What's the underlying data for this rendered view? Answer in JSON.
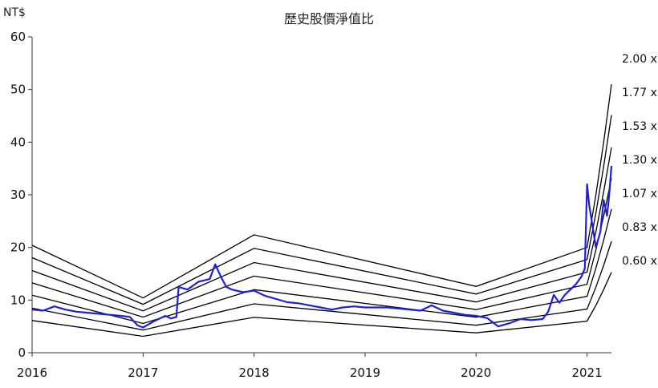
{
  "chart_data": {
    "type": "line",
    "title": "歷史股價淨值比",
    "unit_label": "NT$",
    "xlabel": "",
    "ylabel": "",
    "x_ticks": [
      "2016",
      "2017",
      "2018",
      "2019",
      "2020",
      "2021"
    ],
    "xlim": [
      2016.0,
      2021.22
    ],
    "y_ticks": [
      "0",
      "10",
      "20",
      "30",
      "40",
      "50",
      "60"
    ],
    "ylim": [
      0,
      60
    ],
    "grid": false,
    "book_value_per_share": {
      "x": [
        2016.0,
        2017.0,
        2018.0,
        2020.0,
        2021.0,
        2021.08,
        2021.15,
        2021.22
      ],
      "y": [
        10.2,
        5.2,
        11.2,
        6.3,
        10.0,
        15.0,
        20.0,
        25.5
      ]
    },
    "pb_bands": [
      {
        "name": "2.00 x",
        "multiple": 2.0
      },
      {
        "name": "1.77 x",
        "multiple": 1.77
      },
      {
        "name": "1.53 x",
        "multiple": 1.53
      },
      {
        "name": "1.30 x",
        "multiple": 1.3
      },
      {
        "name": "1.07 x",
        "multiple": 1.07
      },
      {
        "name": "0.83 x",
        "multiple": 0.83
      },
      {
        "name": "0.60 x",
        "multiple": 0.6
      }
    ],
    "price_series": {
      "color": "#1f1fd6",
      "x": [
        2016.0,
        2016.1,
        2016.2,
        2016.3,
        2016.4,
        2016.5,
        2016.6,
        2016.7,
        2016.8,
        2016.88,
        2016.95,
        2017.0,
        2017.1,
        2017.2,
        2017.25,
        2017.3,
        2017.32,
        2017.4,
        2017.5,
        2017.6,
        2017.65,
        2017.7,
        2017.75,
        2017.8,
        2017.9,
        2018.0,
        2018.1,
        2018.2,
        2018.3,
        2018.4,
        2018.5,
        2018.6,
        2018.7,
        2018.8,
        2018.9,
        2019.0,
        2019.2,
        2019.4,
        2019.5,
        2019.6,
        2019.7,
        2019.8,
        2019.9,
        2020.0,
        2020.1,
        2020.2,
        2020.3,
        2020.4,
        2020.5,
        2020.6,
        2020.65,
        2020.7,
        2020.75,
        2020.8,
        2020.9,
        2020.95,
        2020.98,
        2021.0,
        2021.02,
        2021.05,
        2021.08,
        2021.12,
        2021.15,
        2021.18,
        2021.2,
        2021.22
      ],
      "y": [
        8.2,
        8.0,
        8.8,
        8.2,
        7.8,
        7.6,
        7.4,
        7.2,
        7.0,
        6.8,
        5.2,
        4.8,
        6.0,
        7.0,
        6.5,
        6.8,
        12.5,
        12.0,
        13.5,
        14.0,
        16.8,
        14.5,
        12.5,
        12.0,
        11.5,
        11.8,
        10.8,
        10.2,
        9.6,
        9.4,
        9.0,
        8.6,
        8.2,
        8.6,
        8.8,
        8.6,
        8.6,
        8.2,
        8.0,
        9.0,
        8.0,
        7.6,
        7.2,
        7.0,
        6.6,
        5.0,
        5.6,
        6.4,
        6.2,
        6.4,
        7.8,
        11.0,
        9.5,
        11.0,
        13.0,
        14.5,
        16.0,
        32.0,
        28.0,
        24.0,
        20.0,
        23.0,
        29.0,
        26.0,
        30.0,
        35.5
      ]
    }
  }
}
